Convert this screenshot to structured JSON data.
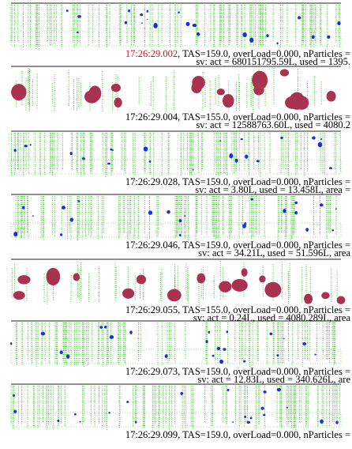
{
  "panels": [
    {
      "time": "17:26:29.002",
      "info": ", TAS=159.0, overLoad=0.000, nParticles =",
      "sv": "sv: act = 680151795.59L, used = 1395.",
      "color": "#1a2ee6"
    },
    {
      "time": "17:26:29.004",
      "info": ", TAS=155.0, overLoad=0.000, nParticles =",
      "sv": "sv: act = 12588763.60L, used = 4080.2",
      "color": "#a83250"
    },
    {
      "time": "17:26:29.028",
      "info": ", TAS=159.0, overLoad=0.000, nParticles =",
      "sv": "sv: act = 3.80L, used = 13.458L, area =",
      "color": "#1a2ee6"
    },
    {
      "time": "17:26:29.046",
      "info": ", TAS=159.0, overLoad=0.000, nParticles =",
      "sv": "sv: act = 34.21L, used = 51.596L, area",
      "color": "#1a2ee6"
    },
    {
      "time": "17:26:29.055",
      "info": ", TAS=155.0, overLoad=0.000, nParticles =",
      "sv": "sv: act = 0.24L, used = 4080.289L, area",
      "color": "#a83250"
    },
    {
      "time": "17:26:29.073",
      "info": ", TAS=159.0, overLoad=0.000, nParticles =",
      "sv": "sv: act = 12.83L, used = 340.626L, are",
      "color": "#1a2ee6"
    },
    {
      "time": "17:26:29.099",
      "info": ", TAS=159.0, overLoad=0.000, nParticles =",
      "color": "#1a2ee6"
    }
  ]
}
